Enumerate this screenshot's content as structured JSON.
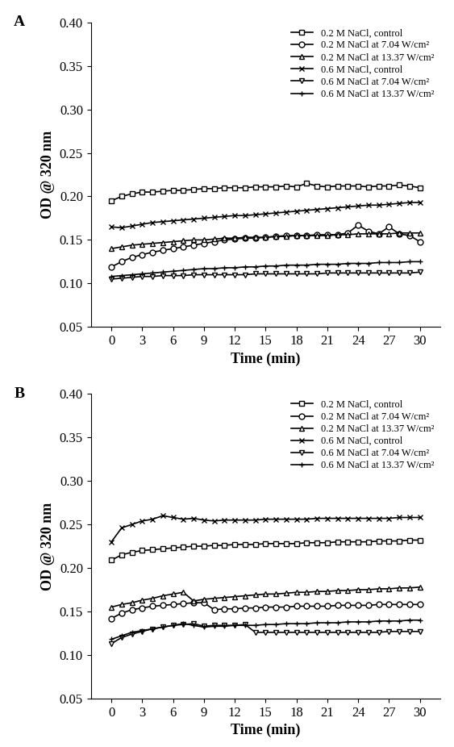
{
  "chart_data": [
    {
      "type": "line",
      "title": "A",
      "x_label": "Time (min)",
      "y_label": "OD @ 320 nm",
      "x": [
        0,
        1,
        2,
        3,
        4,
        5,
        6,
        7,
        8,
        9,
        10,
        11,
        12,
        13,
        14,
        15,
        16,
        17,
        18,
        19,
        20,
        21,
        22,
        23,
        24,
        25,
        26,
        27,
        28,
        29,
        30
      ],
      "xlim": [
        -2,
        32
      ],
      "xticks": [
        0,
        3,
        6,
        9,
        12,
        15,
        18,
        21,
        24,
        27,
        30
      ],
      "ylim": [
        0.05,
        0.4
      ],
      "yticks": [
        0.05,
        {
          "value": 0.1,
          "label": "0.10"
        },
        0.15,
        {
          "value": 0.2,
          "label": "0.20"
        },
        0.25,
        {
          "value": 0.3,
          "label": "0.30"
        },
        0.35,
        {
          "value": 0.4,
          "label": "0.40"
        }
      ],
      "legend": "upper right",
      "grid": false,
      "series": [
        {
          "name": "0.2 M NaCl, control",
          "color": "#000000",
          "marker": "square",
          "values": [
            0.195,
            0.2,
            0.203,
            0.205,
            0.205,
            0.206,
            0.207,
            0.207,
            0.208,
            0.209,
            0.209,
            0.21,
            0.21,
            0.21,
            0.211,
            0.211,
            0.211,
            0.212,
            0.211,
            0.215,
            0.212,
            0.211,
            0.212,
            0.212,
            0.212,
            0.211,
            0.212,
            0.212,
            0.213,
            0.212,
            0.21
          ]
        },
        {
          "name": "0.2 M NaCl at 7.04 W/cm²",
          "color": "#000000",
          "marker": "circle",
          "values": [
            0.119,
            0.125,
            0.13,
            0.133,
            0.136,
            0.138,
            0.14,
            0.142,
            0.144,
            0.146,
            0.148,
            0.15,
            0.151,
            0.152,
            0.152,
            0.153,
            0.154,
            0.155,
            0.155,
            0.155,
            0.156,
            0.156,
            0.156,
            0.158,
            0.167,
            0.16,
            0.157,
            0.165,
            0.157,
            0.155,
            0.148
          ]
        },
        {
          "name": "0.2 M NaCl at 13.37 W/cm²",
          "color": "#000000",
          "marker": "triangle_up",
          "values": [
            0.14,
            0.142,
            0.144,
            0.145,
            0.146,
            0.147,
            0.148,
            0.149,
            0.15,
            0.15,
            0.151,
            0.152,
            0.152,
            0.153,
            0.153,
            0.153,
            0.154,
            0.154,
            0.155,
            0.155,
            0.155,
            0.155,
            0.156,
            0.156,
            0.157,
            0.157,
            0.157,
            0.157,
            0.158,
            0.158,
            0.158
          ]
        },
        {
          "name": "0.6 M NaCl, control",
          "color": "#000000",
          "marker": "x",
          "values": [
            0.165,
            0.164,
            0.166,
            0.168,
            0.17,
            0.171,
            0.172,
            0.173,
            0.174,
            0.175,
            0.176,
            0.177,
            0.178,
            0.178,
            0.179,
            0.18,
            0.181,
            0.182,
            0.183,
            0.184,
            0.185,
            0.186,
            0.187,
            0.188,
            0.189,
            0.19,
            0.19,
            0.191,
            0.192,
            0.193,
            0.193
          ]
        },
        {
          "name": "0.6 M NaCl at 7.04 W/cm²",
          "color": "#000000",
          "marker": "triangle_down",
          "values": [
            0.105,
            0.106,
            0.107,
            0.108,
            0.108,
            0.109,
            0.109,
            0.109,
            0.11,
            0.11,
            0.11,
            0.11,
            0.11,
            0.11,
            0.111,
            0.111,
            0.111,
            0.111,
            0.111,
            0.111,
            0.111,
            0.112,
            0.112,
            0.112,
            0.112,
            0.112,
            0.112,
            0.112,
            0.112,
            0.112,
            0.113
          ]
        },
        {
          "name": "0.6 M NaCl at 13.37 W/cm²",
          "color": "#000000",
          "marker": "plus",
          "values": [
            0.108,
            0.109,
            0.11,
            0.111,
            0.112,
            0.113,
            0.114,
            0.115,
            0.116,
            0.117,
            0.117,
            0.118,
            0.118,
            0.119,
            0.119,
            0.12,
            0.12,
            0.121,
            0.121,
            0.121,
            0.122,
            0.122,
            0.122,
            0.123,
            0.123,
            0.123,
            0.124,
            0.124,
            0.124,
            0.125,
            0.125
          ]
        }
      ]
    },
    {
      "type": "line",
      "title": "B",
      "x_label": "Time (min)",
      "y_label": "OD @ 320 nm",
      "x": [
        0,
        1,
        2,
        3,
        4,
        5,
        6,
        7,
        8,
        9,
        10,
        11,
        12,
        13,
        14,
        15,
        16,
        17,
        18,
        19,
        20,
        21,
        22,
        23,
        24,
        25,
        26,
        27,
        28,
        29,
        30
      ],
      "xlim": [
        -2,
        32
      ],
      "xticks": [
        0,
        3,
        6,
        9,
        12,
        15,
        18,
        21,
        24,
        27,
        30
      ],
      "ylim": [
        0.05,
        0.4
      ],
      "yticks": [
        0.05,
        {
          "value": 0.1,
          "label": "0.10"
        },
        0.15,
        {
          "value": 0.2,
          "label": "0.20"
        },
        0.25,
        {
          "value": 0.3,
          "label": "0.30"
        },
        0.35,
        {
          "value": 0.4,
          "label": "0.40"
        }
      ],
      "legend": "upper right",
      "grid": false,
      "series": [
        {
          "name": "0.2 M NaCl, control",
          "color": "#000000",
          "marker": "square",
          "values": [
            0.209,
            0.215,
            0.218,
            0.22,
            0.221,
            0.222,
            0.223,
            0.224,
            0.225,
            0.225,
            0.226,
            0.226,
            0.227,
            0.227,
            0.227,
            0.228,
            0.228,
            0.228,
            0.228,
            0.229,
            0.229,
            0.229,
            0.23,
            0.23,
            0.23,
            0.23,
            0.231,
            0.231,
            0.231,
            0.232,
            0.232
          ]
        },
        {
          "name": "0.2 M NaCl at 7.04 W/cm²",
          "color": "#000000",
          "marker": "circle",
          "values": [
            0.142,
            0.148,
            0.152,
            0.154,
            0.156,
            0.157,
            0.158,
            0.159,
            0.16,
            0.16,
            0.152,
            0.153,
            0.153,
            0.154,
            0.154,
            0.155,
            0.155,
            0.155,
            0.156,
            0.156,
            0.156,
            0.156,
            0.157,
            0.157,
            0.157,
            0.157,
            0.158,
            0.158,
            0.158,
            0.158,
            0.158
          ]
        },
        {
          "name": "0.2 M NaCl at 13.37 W/cm²",
          "color": "#000000",
          "marker": "triangle_up",
          "values": [
            0.155,
            0.158,
            0.16,
            0.163,
            0.165,
            0.168,
            0.17,
            0.172,
            0.162,
            0.164,
            0.165,
            0.166,
            0.167,
            0.168,
            0.169,
            0.17,
            0.17,
            0.171,
            0.172,
            0.172,
            0.173,
            0.173,
            0.174,
            0.174,
            0.175,
            0.175,
            0.176,
            0.176,
            0.177,
            0.177,
            0.178
          ]
        },
        {
          "name": "0.6 M NaCl, control",
          "color": "#000000",
          "marker": "x",
          "values": [
            0.23,
            0.246,
            0.25,
            0.254,
            0.256,
            0.26,
            0.258,
            0.256,
            0.257,
            0.255,
            0.254,
            0.255,
            0.255,
            0.255,
            0.255,
            0.256,
            0.256,
            0.256,
            0.256,
            0.256,
            0.257,
            0.257,
            0.257,
            0.257,
            0.257,
            0.257,
            0.257,
            0.257,
            0.258,
            0.258,
            0.258
          ]
        },
        {
          "name": "0.6 M NaCl at 7.04 W/cm²",
          "color": "#000000",
          "marker": "triangle_down",
          "values": [
            0.113,
            0.12,
            0.124,
            0.127,
            0.13,
            0.132,
            0.134,
            0.135,
            0.136,
            0.133,
            0.134,
            0.134,
            0.134,
            0.135,
            0.126,
            0.126,
            0.126,
            0.126,
            0.126,
            0.126,
            0.126,
            0.126,
            0.126,
            0.126,
            0.126,
            0.126,
            0.126,
            0.127,
            0.127,
            0.127,
            0.127
          ]
        },
        {
          "name": "0.6 M NaCl at 13.37 W/cm²",
          "color": "#000000",
          "marker": "plus",
          "values": [
            0.118,
            0.122,
            0.126,
            0.128,
            0.13,
            0.132,
            0.134,
            0.136,
            0.134,
            0.132,
            0.133,
            0.133,
            0.134,
            0.134,
            0.134,
            0.135,
            0.135,
            0.136,
            0.136,
            0.136,
            0.137,
            0.137,
            0.137,
            0.138,
            0.138,
            0.138,
            0.139,
            0.139,
            0.139,
            0.14,
            0.14
          ]
        }
      ]
    }
  ]
}
